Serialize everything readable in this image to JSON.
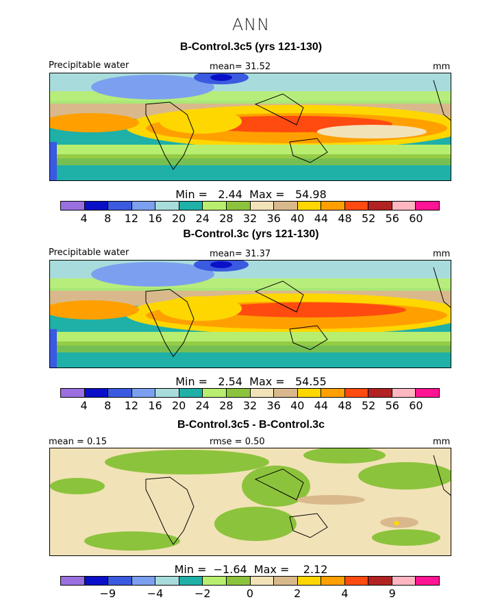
{
  "page_title": "ANN",
  "colors": {
    "palette": [
      "#9a70e0",
      "#0a10c8",
      "#3a5ae0",
      "#7ca0ef",
      "#a8dcdc",
      "#1fb0a8",
      "#b8ee70",
      "#8cc33c",
      "#f2e2b8",
      "#d9b98c",
      "#ffd700",
      "#ffa000",
      "#ff4a10",
      "#b22222",
      "#ffb6c1",
      "#ff1493"
    ]
  },
  "panels": [
    {
      "title": "B-Control.3c5 (yrs 121-130)",
      "variable": "Precipitable water",
      "mean_text": "mean=  31.52",
      "units": "mm",
      "stats_text": "Min =   2.44  Max =   54.98",
      "colorbar_ticks": [
        "4",
        "8",
        "12",
        "16",
        "20",
        "24",
        "28",
        "32",
        "36",
        "40",
        "44",
        "48",
        "52",
        "56",
        "60"
      ]
    },
    {
      "title": "B-Control.3c (yrs 121-130)",
      "variable": "Precipitable water",
      "mean_text": "mean=  31.37",
      "units": "mm",
      "stats_text": "Min =   2.54  Max =   54.55",
      "colorbar_ticks": [
        "4",
        "8",
        "12",
        "16",
        "20",
        "24",
        "28",
        "32",
        "36",
        "40",
        "44",
        "48",
        "52",
        "56",
        "60"
      ]
    },
    {
      "title": "B-Control.3c5 - B-Control.3c",
      "mean_text": "mean =   0.15",
      "rmse_text": "rmse =   0.50",
      "units": "mm",
      "stats_text": "Min =  −1.64  Max =    2.12",
      "colorbar_ticks": [
        "−9",
        "−4",
        "−2",
        "0",
        "2",
        "4",
        "9"
      ]
    }
  ]
}
